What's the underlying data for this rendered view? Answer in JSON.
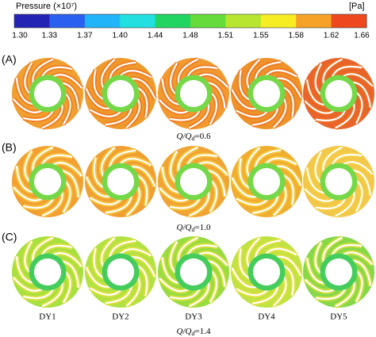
{
  "colorbar": {
    "title": "Pressure  (×10⁷)",
    "unit": "[Pa]",
    "ticks": [
      "1.30",
      "1.33",
      "1.37",
      "1.40",
      "1.44",
      "1.48",
      "1.51",
      "1.55",
      "1.58",
      "1.62",
      "1.66"
    ],
    "colors": [
      "#2323b4",
      "#2a60f0",
      "#22b4f8",
      "#22e0e0",
      "#22d462",
      "#66dc3c",
      "#b8e630",
      "#f6ee22",
      "#f6a228",
      "#ec4a1c"
    ]
  },
  "panels": [
    {
      "label": "(A)",
      "condition": {
        "main": "Q/Q",
        "sub": "d",
        "value": "=0.6"
      }
    },
    {
      "label": "(B)",
      "condition": {
        "main": "Q/Q",
        "sub": "d",
        "value": "=1.0"
      }
    },
    {
      "label": "(C)",
      "condition": {
        "main": "Q/Q",
        "sub": "d",
        "value": "=1.4"
      }
    }
  ],
  "columns": [
    "DY1",
    "DY2",
    "DY3",
    "DY4",
    "DY5"
  ]
}
